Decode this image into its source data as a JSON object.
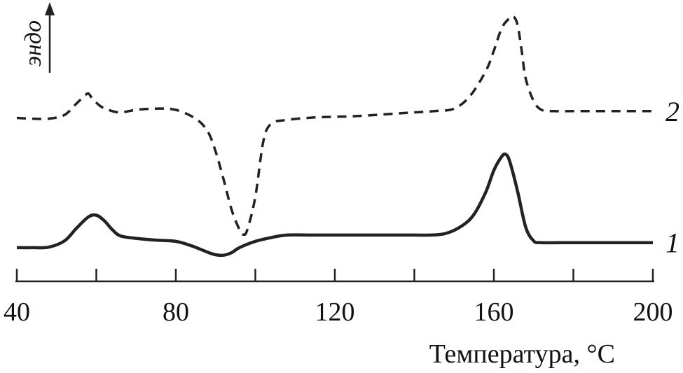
{
  "chart_data": {
    "type": "line",
    "xlabel": "Температура, °C",
    "ylabel": "эндо",
    "xlim": [
      40,
      200
    ],
    "xticks": [
      40,
      60,
      80,
      100,
      120,
      140,
      160,
      180,
      200
    ],
    "xtick_labels": [
      "40",
      "",
      "80",
      "",
      "120",
      "",
      "160",
      "",
      "200"
    ],
    "ylim": [
      0,
      100
    ],
    "grid": false,
    "series": [
      {
        "name": "1",
        "style": "solid",
        "color": "#222222",
        "x": [
          40,
          44,
          48,
          52,
          55,
          58,
          60,
          62,
          64,
          66,
          70,
          75,
          80,
          84,
          88,
          90,
          92,
          94,
          96,
          100,
          104,
          108,
          115,
          125,
          135,
          140,
          144,
          148,
          152,
          155,
          158,
          160,
          162,
          163,
          164,
          166,
          168,
          170,
          172,
          180,
          190,
          200
        ],
        "y": [
          7.8,
          7.8,
          8.0,
          10.5,
          15.5,
          20.0,
          20.7,
          18.5,
          15.0,
          12.5,
          11.5,
          10.8,
          10.3,
          8.5,
          6.0,
          5.0,
          4.8,
          5.8,
          7.8,
          10.3,
          11.8,
          12.8,
          12.8,
          12.8,
          12.8,
          12.8,
          12.8,
          13.5,
          16.5,
          21.0,
          30.0,
          38.5,
          44.0,
          44.8,
          42.0,
          30.0,
          16.0,
          10.5,
          9.8,
          9.8,
          9.8,
          9.8
        ]
      },
      {
        "name": "2",
        "style": "dashed",
        "color": "#222222",
        "x": [
          40,
          44,
          48,
          52,
          55,
          57,
          58,
          59,
          61,
          63,
          66,
          70,
          75,
          80,
          85,
          88,
          90,
          92,
          94,
          96,
          97,
          98,
          100,
          102,
          104,
          108,
          115,
          125,
          135,
          140,
          145,
          150,
          154,
          158,
          160,
          162,
          164,
          165,
          166,
          167,
          168,
          170,
          172,
          175,
          180,
          190,
          200
        ],
        "y": [
          59.3,
          59.0,
          59.0,
          60.5,
          65.0,
          68.0,
          69.0,
          67.0,
          64.0,
          62.5,
          61.5,
          62.5,
          63.0,
          62.5,
          59.0,
          54.0,
          46.0,
          35.0,
          23.0,
          15.0,
          13.0,
          15.0,
          28.0,
          50.0,
          57.0,
          58.5,
          59.5,
          60.0,
          61.0,
          61.5,
          62.0,
          63.0,
          68.0,
          78.0,
          86.0,
          95.0,
          99.0,
          99.5,
          96.0,
          86.0,
          75.0,
          66.0,
          62.5,
          62.0,
          62.0,
          62.0,
          62.0
        ]
      }
    ]
  }
}
